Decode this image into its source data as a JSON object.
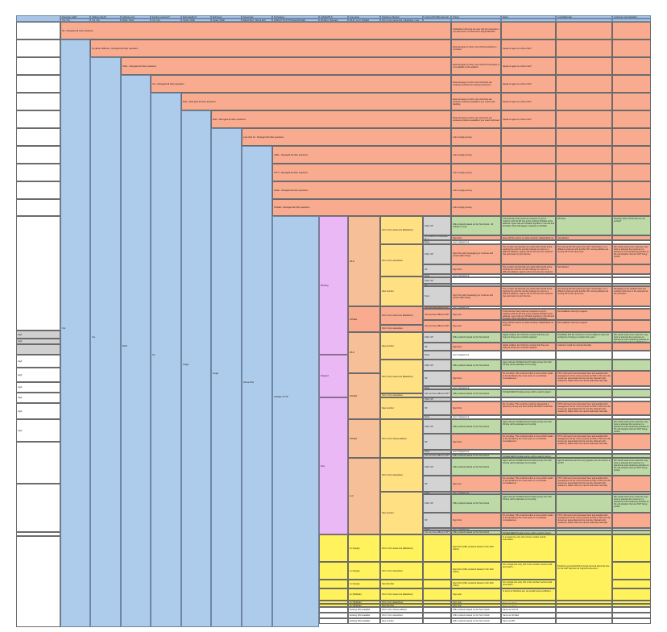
{
  "sheet": {
    "header_row": [
      {
        "label": "Postcode valid?",
        "options": "Yes / No"
      },
      {
        "label": "Address listed?",
        "options": "Yes / No"
      },
      {
        "label": "Address type",
        "options": "Build / Other"
      },
      {
        "label": "Existing customer?",
        "options": "Yes / No"
      },
      {
        "label": "Multi dwelling?",
        "options": "Single / Multi"
      },
      {
        "label": "Multi feed",
        "options": "Single / Multi"
      },
      {
        "label": "Speed test",
        "options": "Below floor / Above floor"
      },
      {
        "label": "Technology",
        "options": "ADSL/FTTC/FTTP/GFast/SOGEA"
      },
      {
        "label": "LMC/EVPLS",
        "options": "Working / Stopped"
      },
      {
        "label": "Line setup",
        "options": "WLR / LLU / SOGEA"
      },
      {
        "label": "Telephone Number",
        "options": "Port in from same line / elsewhere / new"
      },
      {
        "label": "Current SP (Who has line)",
        "options": ""
      },
      {
        "label": "Output",
        "options": ""
      },
      {
        "label": "Notes",
        "options": ""
      },
      {
        "label": "Logic/Rationale",
        "options": ""
      },
      {
        "label": "Customer Copy/Handled",
        "options": ""
      }
    ],
    "stop_rows": [
      {
        "text": "No - Disregard all other questions",
        "output": "Notification informing the user that the postcode is not valid and is not listed from Royal Mail PAF",
        "notes": ""
      },
      {
        "text": "No (Enter address) - Disregard all other questions",
        "output": "External page to inform user that the address is not listed",
        "notes": "Speak to agent on online chat?"
      },
      {
        "text": "Other - Disregard all other questions",
        "output": "External page to inform user that the technology is not available at the address",
        "notes": "Speak to agent on online chat?"
      },
      {
        "text": "Yes - Disregard all other questions",
        "output": "External page to inform user that there are exclusive products for existing customers",
        "notes": "Speak to agent on online chat?"
      },
      {
        "text": "Multi - Disregard all other questions",
        "output": "External page to inform user that there are exclusive products available if you need multi-dwelling",
        "notes": "Speak to agent on online chat?"
      },
      {
        "text": "Multi - Disregard all other questions",
        "output": "External page to inform user that there are exclusive products available if you need multi-feed",
        "notes": "Speak to agent on online chat?"
      },
      {
        "text": "Less than 10 - Disregard all other questions",
        "output": "Link to Apply journey",
        "notes": ""
      },
      {
        "text": "ADSL - Disregard all other questions",
        "output": "Link to Apply journey",
        "notes": ""
      },
      {
        "text": "FTTC - Disregard all other questions",
        "output": "Link to Apply journey",
        "notes": ""
      },
      {
        "text": "GFast - Disregard all other questions",
        "output": "Link to Apply journey",
        "notes": ""
      },
      {
        "text": "SOGEA - Disregard all other questions",
        "output": "Link to Apply journey",
        "notes": ""
      }
    ],
    "continue_values": {
      "postcode": "Yes",
      "address": "Yes",
      "type": "Build",
      "existing": "No",
      "dwelling": "Single",
      "feed": "Single",
      "speed": "Above floor",
      "technology": "SOGEA / FTTP"
    },
    "left_labels": [
      "High",
      "High",
      "High",
      "High",
      "High",
      "High",
      "High",
      "High"
    ],
    "lmc": [
      {
        "label": "Working",
        "color": "pink"
      },
      {
        "label": "Stopped",
        "color": "pink"
      },
      {
        "label": "New",
        "color": "pink"
      }
    ],
    "line_setup": [
      "WLR",
      "SOGEA",
      "WLR",
      "SOGEA",
      "SOGEA",
      "LLU"
    ],
    "phone_blocks": [
      "Port in from same line (Backdoor)",
      "Port in from elsewhere",
      "New number",
      "Port in from same line (Backdoor)",
      "Port in from elsewhere",
      "New number",
      "Port in from same line (Backdoor)",
      "Port in from elsewhere",
      "New number",
      "Port in from Same address",
      "Port in from elsewhere",
      "New number"
    ],
    "sp_options": {
      "other": "Other SP",
      "sp": "SP",
      "sp_check": "SP (check if it's business or...)",
      "none": "None",
      "other_sp": "Other SP",
      "diff": "Can we have different SP?"
    },
    "outputs": {
      "offer": "Offer products based on the Test check - 30 change to copy",
      "sign_post": "Sign Post",
      "wont": "won't stopped out",
      "sign_post_both": "Sign Post (with messaging) or continue and present £££ charge",
      "offer_test": "Offer products based on the Test check",
      "sign_post_offer": "Sign Post (Offer products based on the Tech check)",
      "sign_post_plain": "Sign post"
    },
    "notes_samples": [
      "If the Number that Customer requests to port in matches with the BT line at the working SOGEA at the address. Agent will use SOGEA migration in the AD and formality check will happen instantly on SOGEA.",
      "Every ROSC and its is made currently 'Cabled/Sold' as outcome",
      "The number will (should) not match with line/tel at the working line and the number belongs to a line in a different address. Agents will not be sure the customer has permission to port the line.",
      "Highly unlikely, but if the line number that they are trying to bring over could be required",
      "Agent will use SOGEA New Provide journey from AD. Porting will be allocated on D-config.",
      "Do not allow. This could be either a move which needs to be handled by the move team or a combined move/takeover.",
      "SOGEA NEW Provide journey will be used by Agent.",
      "Do not allow. This could be customer attempting a takeover journey and also disrupt WLR/SP conversion."
    ],
    "logic_samples": [
      "SP-Aces",
      "Not Allowed",
      "The issuing SP will receive the NoT confirmation, so a different customer with another SP moving address are moving SP at the same time.",
      "Not available currently to agents",
      "Probability that the customer is very unlikely to have the porting line bringing a number into a port",
      "Customer could be moving internally",
      "FTTC will need to be discussed here and avoided with management of the move process as 60% of the time the moves are sequential and not one day. Manual work needed by Sales which we cannot automate internally.",
      "Agents allow the port from any (system) we can host in to our BT"
    ],
    "customer_samples": [
      "Possibly other FTTPs that are not porting?",
      "We would need some customer copy here to educate the customer on place/time and restraining activities at the cell situation that are NOT being ported",
      "Messaging to be clarified there are existing customers in the area and at the premises..."
    ],
    "yellow_section": {
      "line_setup": [
        "LU (single)",
        "LU (single)",
        "LU (single)",
        "LU (Multiple)",
        "LU (Multiple)",
        "LU (Multiple)",
        "Existing SIM available",
        "Existing SIM available",
        "Existing SIM available"
      ],
      "phone": [
        "Port in from same line (Backdoor)",
        "Port in from elsewhere",
        "New Number",
        "Port in from same line (Backdoor)",
        "Port in from Elsewhere",
        "New Number",
        "Port in from Same address",
        "Port in from elsewhere",
        "New number"
      ],
      "output": [
        "Sign Post (Offer products based on the Tech check)",
        "Sign Post (Offer products based on the Tech check)",
        "Sign Post (Offer products based on the Tech check)",
        "Sign post",
        "Sign post",
        "Sign post",
        "Offer products based on the Tech check",
        "Offer products based on the Tech check",
        "Offer products based on the Tech check"
      ],
      "notes": [
        "In a single line only, the LU line number and its associated ...",
        "For a single line only, this is the number's account tail permission...",
        "For a single line only, this is the number's account tail permission...",
        "In terms of the/there are, we would need a sufficient ...",
        "Same as above",
        "Same as above",
        "Same as Feb 15",
        "Same as SOGEA",
        "Same as BTL"
      ],
      "logic": "Products we should think through and ask about the line for the FAP. Beyond the original consumers ..."
    }
  }
}
